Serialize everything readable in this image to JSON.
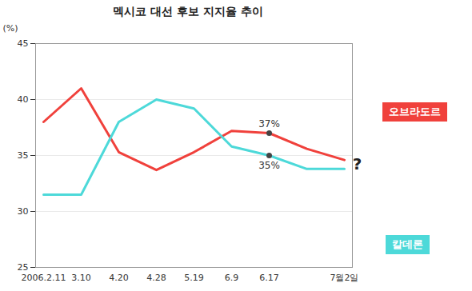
{
  "chart_data": {
    "type": "line",
    "title": "멕시코 대선 후보 지지율 추이",
    "y_label": "(%)",
    "categories": [
      "2006.2.11",
      "3.10",
      "4.20",
      "4.28",
      "5.19",
      "6.9",
      "6.17",
      null,
      "7월2일"
    ],
    "series": [
      {
        "name": "오브라도르",
        "color": "#f0413c",
        "values": [
          38,
          41,
          35.3,
          33.7,
          35.3,
          37.2,
          37,
          35.6,
          34.6
        ]
      },
      {
        "name": "칼데론",
        "color": "#4dd9d9",
        "values": [
          31.5,
          31.5,
          38,
          40,
          39.2,
          35.8,
          35,
          33.8,
          33.8
        ]
      }
    ],
    "annotations": [
      {
        "text": "37%",
        "x": "6.17",
        "y": 37
      },
      {
        "text": "35%",
        "x": "6.17",
        "y": 35
      },
      {
        "text": "?"
      }
    ],
    "ylim": [
      25,
      45
    ],
    "yticks": [
      25,
      30,
      35,
      40,
      45
    ],
    "grid": true
  }
}
